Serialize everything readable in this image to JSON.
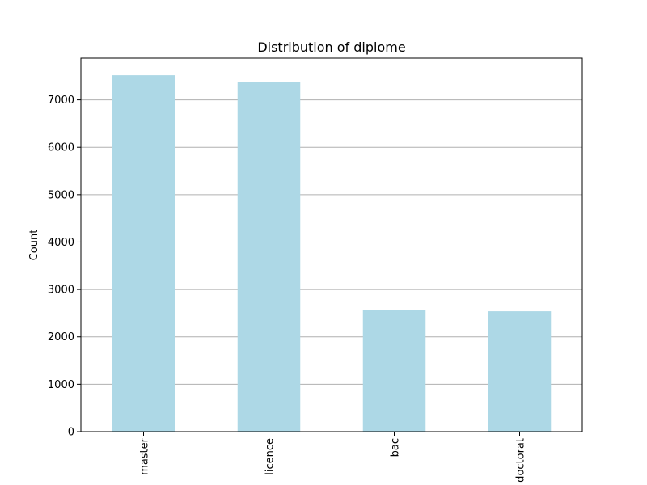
{
  "chart_data": {
    "type": "bar",
    "title": "Distribution of diplome",
    "xlabel": "",
    "ylabel": "Count",
    "categories": [
      "master",
      "licence",
      "bac",
      "doctorat"
    ],
    "values": [
      7520,
      7380,
      2560,
      2540
    ],
    "ylim": [
      0,
      7880
    ],
    "yticks": [
      0,
      1000,
      2000,
      3000,
      4000,
      5000,
      6000,
      7000
    ],
    "ytick_labels": [
      "0",
      "1000",
      "2000",
      "3000",
      "4000",
      "5000",
      "6000",
      "7000"
    ],
    "grid": "y",
    "legend": "none",
    "xtick_rotation": "vertical",
    "colors": {
      "bar": "#add8e6",
      "grid": "#b0b0b0",
      "axis": "#000000"
    }
  }
}
